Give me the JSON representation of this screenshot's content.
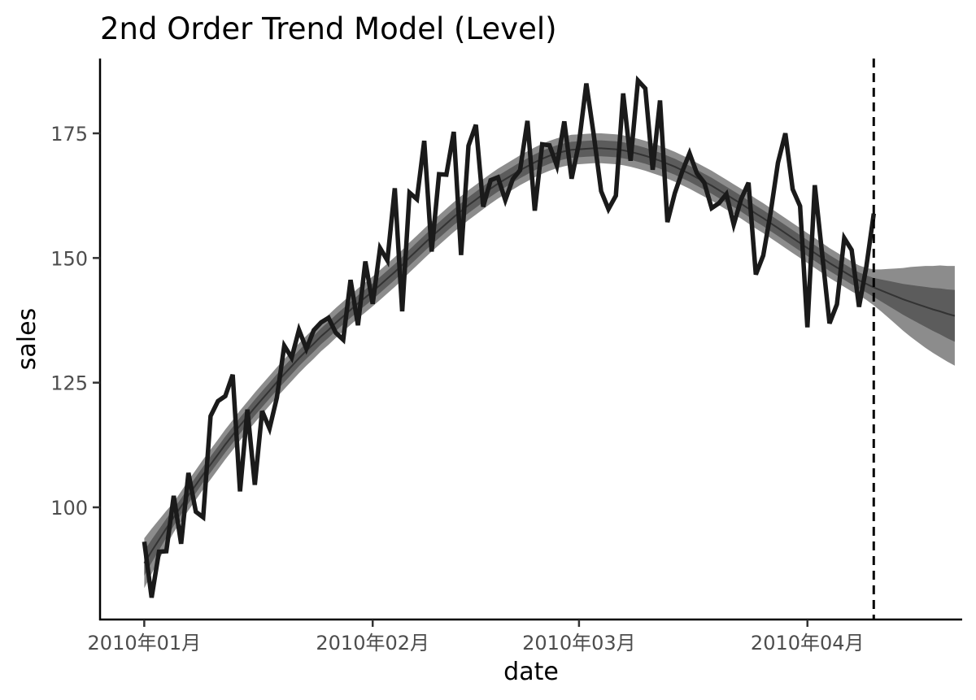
{
  "chart_data": {
    "type": "line",
    "title": "2nd Order Trend Model (Level)",
    "xlabel": "date",
    "ylabel": "sales",
    "x_ticks": [
      "2010年01月",
      "2010年02月",
      "2010年03月",
      "2010年04月"
    ],
    "x_tick_dates": [
      "2010-01-01",
      "2010-02-01",
      "2010-03-01",
      "2010-04-01"
    ],
    "y_ticks": [
      100,
      125,
      150,
      175
    ],
    "xlim": [
      "2009-12-26",
      "2010-04-22"
    ],
    "ylim": [
      77.5,
      190
    ],
    "forecast_start": "2010-04-10",
    "observed": {
      "start": "2010-01-01",
      "step_days": 1,
      "values": [
        93.1,
        81.9,
        91.1,
        91.2,
        102.3,
        92.7,
        106.9,
        99.1,
        98.0,
        118.3,
        121.3,
        122.3,
        126.6,
        103.2,
        119.6,
        104.5,
        119.3,
        115.8,
        122.0,
        132.4,
        130.0,
        135.6,
        131.8,
        135.5,
        137.1,
        138.0,
        135.0,
        133.6,
        145.6,
        136.5,
        149.3,
        140.8,
        152.0,
        149.5,
        164.0,
        139.3,
        163.1,
        161.8,
        173.5,
        151.3,
        166.8,
        166.7,
        175.3,
        150.6,
        172.5,
        176.7,
        160.3,
        165.6,
        166.2,
        161.6,
        165.8,
        167.6,
        177.5,
        159.5,
        172.8,
        172.6,
        168.5,
        177.4,
        165.9,
        173.1,
        185.0,
        174.7,
        163.4,
        159.8,
        162.5,
        183.0,
        169.5,
        185.6,
        184.0,
        167.7,
        181.6,
        157.2,
        163.0,
        167.3,
        171.0,
        167.0,
        165.1,
        160.0,
        161.0,
        162.8,
        156.7,
        161.8,
        165.1,
        146.7,
        150.5,
        159.0,
        169.1,
        175.0,
        163.8,
        160.4,
        136.1,
        164.6,
        150.7,
        136.9,
        140.7,
        154.0,
        151.6,
        140.2,
        148.3,
        158.9
      ]
    },
    "trend": {
      "start": "2010-01-01",
      "step_days": 1,
      "values": [
        88.8,
        91.2,
        93.5,
        95.8,
        98.0,
        100.2,
        102.4,
        104.5,
        106.6,
        108.6,
        110.6,
        112.6,
        114.5,
        116.4,
        118.2,
        120.0,
        121.7,
        123.4,
        125.1,
        126.7,
        128.3,
        129.9,
        131.4,
        132.8,
        134.3,
        135.6,
        137.0,
        138.3,
        139.6,
        140.9,
        142.1,
        143.3,
        144.6,
        145.9,
        147.2,
        148.6,
        150.1,
        151.5,
        152.9,
        154.3,
        155.6,
        156.9,
        158.2,
        159.4,
        160.6,
        161.7,
        162.8,
        163.9,
        164.9,
        165.8,
        166.7,
        167.6,
        168.4,
        169.2,
        169.9,
        170.5,
        171.0,
        171.4,
        171.7,
        171.8,
        171.9,
        172.0,
        172.0,
        171.9,
        171.8,
        171.6,
        171.3,
        170.9,
        170.5,
        170.0,
        169.5,
        168.9,
        168.3,
        167.6,
        166.9,
        166.1,
        165.3,
        164.5,
        163.6,
        162.7,
        161.8,
        160.9,
        159.9,
        158.9,
        158.0,
        157.0,
        156.0,
        155.0,
        154.0,
        153.0,
        152.0,
        151.0,
        150.0,
        149.0,
        148.1,
        147.2,
        146.3,
        145.5,
        144.8,
        144.1,
        143.5,
        142.9,
        142.3,
        141.7,
        141.2,
        140.7,
        140.2,
        139.7,
        139.3,
        138.8,
        138.4
      ]
    },
    "band_outer_halfwidth": [
      5.0,
      4.5,
      4.0,
      3.5,
      3.0,
      3.0,
      3.0,
      3.0,
      3.0,
      3.0,
      3.0,
      3.0,
      3.0,
      3.0,
      3.0,
      3.0,
      3.0,
      3.0,
      3.0,
      3.0,
      3.0,
      3.0,
      3.0,
      3.0,
      3.0,
      3.0,
      3.0,
      3.0,
      3.0,
      3.0,
      3.0,
      3.0,
      3.0,
      3.0,
      3.0,
      3.0,
      3.0,
      3.0,
      3.0,
      3.0,
      3.0,
      3.0,
      3.0,
      3.0,
      3.0,
      3.0,
      3.0,
      3.0,
      3.0,
      3.0,
      3.0,
      3.0,
      3.0,
      3.0,
      3.0,
      3.0,
      3.0,
      3.0,
      3.0,
      3.0,
      3.0,
      3.0,
      3.0,
      3.0,
      3.0,
      3.0,
      3.0,
      3.0,
      3.0,
      3.0,
      3.0,
      3.0,
      3.0,
      3.0,
      3.0,
      3.0,
      3.0,
      3.0,
      3.0,
      3.0,
      3.0,
      3.0,
      3.0,
      3.0,
      3.0,
      3.0,
      3.0,
      3.0,
      3.0,
      3.0,
      3.0,
      3.0,
      3.0,
      3.0,
      3.0,
      3.0,
      3.0,
      3.0,
      3.2,
      3.6,
      4.2,
      4.9,
      5.6,
      6.3,
      7.0,
      7.6,
      8.2,
      8.7,
      9.2,
      9.6,
      10.0
    ],
    "band_inner_halfwidth": [
      2.5,
      2.3,
      2.1,
      1.9,
      1.7,
      1.6,
      1.6,
      1.6,
      1.6,
      1.6,
      1.6,
      1.6,
      1.6,
      1.6,
      1.6,
      1.6,
      1.6,
      1.6,
      1.6,
      1.6,
      1.6,
      1.6,
      1.6,
      1.6,
      1.6,
      1.6,
      1.6,
      1.6,
      1.6,
      1.6,
      1.6,
      1.6,
      1.6,
      1.6,
      1.6,
      1.6,
      1.6,
      1.6,
      1.6,
      1.6,
      1.6,
      1.6,
      1.6,
      1.6,
      1.6,
      1.6,
      1.6,
      1.6,
      1.6,
      1.6,
      1.6,
      1.6,
      1.6,
      1.6,
      1.6,
      1.6,
      1.6,
      1.6,
      1.6,
      1.6,
      1.6,
      1.6,
      1.6,
      1.6,
      1.6,
      1.6,
      1.6,
      1.6,
      1.6,
      1.6,
      1.6,
      1.6,
      1.6,
      1.6,
      1.6,
      1.6,
      1.6,
      1.6,
      1.6,
      1.6,
      1.6,
      1.6,
      1.6,
      1.6,
      1.6,
      1.6,
      1.6,
      1.6,
      1.6,
      1.6,
      1.6,
      1.6,
      1.6,
      1.6,
      1.6,
      1.6,
      1.6,
      1.6,
      1.7,
      1.9,
      2.2,
      2.5,
      2.8,
      3.1,
      3.4,
      3.7,
      4.0,
      4.3,
      4.6,
      4.9,
      5.2
    ],
    "colors": {
      "observed_line": "#1a1a1a",
      "trend_line": "#333333",
      "band_outer": "#8c8c8c",
      "band_inner": "#5c5c5c",
      "axis": "#000000",
      "tick_label": "#4d4d4d",
      "title": "#000000"
    },
    "grid": false,
    "legend": "none"
  }
}
